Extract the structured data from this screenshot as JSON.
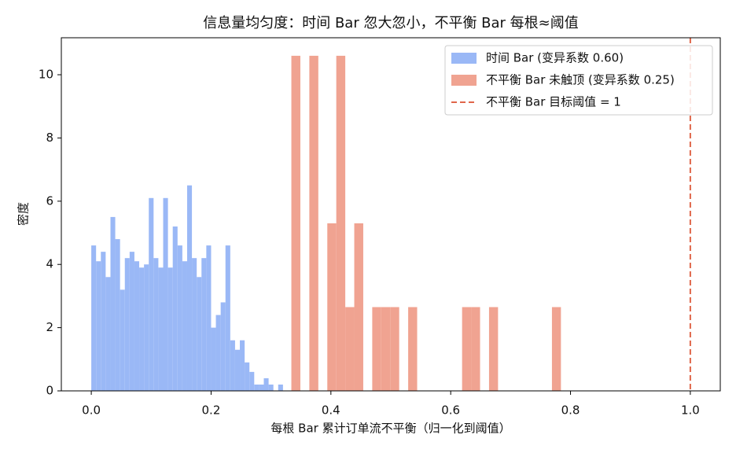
{
  "chart_data": {
    "type": "histogram",
    "title": "信息量均匀度：时间 Bar 忽大忽小，不平衡 Bar 每根≈阈值",
    "xlabel": "每根 Bar 累计订单流不平衡（归一化到阈值）",
    "ylabel": "密度",
    "xlim": [
      -0.05,
      1.05
    ],
    "ylim": [
      0,
      11.17
    ],
    "xticks": [
      {
        "value": 0,
        "label": "0.0"
      },
      0.2,
      0.4,
      0.6,
      0.8,
      {
        "value": 1,
        "label": "1.0"
      }
    ],
    "yticks": [
      0,
      2,
      4,
      6,
      8,
      10
    ],
    "legend": "upper right",
    "series": [
      {
        "name": "时间 Bar (变异系数 0.60)",
        "color": "#9ab8f6",
        "bins": [
          0,
          0.008,
          0.016,
          0.024,
          0.032,
          0.04,
          0.048,
          0.056,
          0.064,
          0.072,
          0.08,
          0.088,
          0.096,
          0.104,
          0.112,
          0.12,
          0.128,
          0.136,
          0.144,
          0.152,
          0.16,
          0.168,
          0.176,
          0.184,
          0.192,
          0.2,
          0.208,
          0.216,
          0.224,
          0.232,
          0.24,
          0.248,
          0.256,
          0.264,
          0.272,
          0.28,
          0.288,
          0.296,
          0.304,
          0.312,
          0.32
        ],
        "values": [
          4.6,
          4.1,
          4.4,
          3.6,
          5.5,
          4.8,
          3.2,
          4.2,
          4.4,
          4.1,
          3.9,
          4.0,
          6.1,
          4.2,
          3.9,
          6.1,
          3.9,
          5.2,
          4.6,
          4.1,
          6.5,
          4.2,
          3.6,
          4.2,
          4.6,
          2.0,
          2.4,
          2.8,
          4.6,
          1.6,
          1.3,
          1.6,
          0.9,
          0.6,
          0.2,
          0.2,
          0.4,
          0.2,
          0,
          0.2
        ]
      },
      {
        "name": "不平衡 Bar 未触顶 (变异系数 0.25)",
        "color": "#f0a391",
        "bins": [
          0.334,
          0.349,
          0.364,
          0.379,
          0.394,
          0.409,
          0.424,
          0.439,
          0.454,
          0.469,
          0.484,
          0.499,
          0.514,
          0.529,
          0.544,
          0.559,
          0.574,
          0.589,
          0.604,
          0.619,
          0.634,
          0.649,
          0.664,
          0.679,
          0.694,
          0.709,
          0.724,
          0.739,
          0.754,
          0.769,
          0.784
        ],
        "values": [
          10.6,
          0,
          10.6,
          0,
          5.3,
          10.6,
          2.65,
          5.3,
          0,
          2.65,
          2.65,
          2.65,
          0,
          2.65,
          0,
          0,
          0,
          0,
          0,
          2.65,
          2.65,
          0,
          2.65,
          0,
          0,
          0,
          0,
          0,
          0,
          2.65
        ]
      }
    ],
    "vline": {
      "name": "不平衡 Bar 目标阈值 = 1",
      "value": 1,
      "color": "#e0664a",
      "style": "dashed"
    }
  }
}
